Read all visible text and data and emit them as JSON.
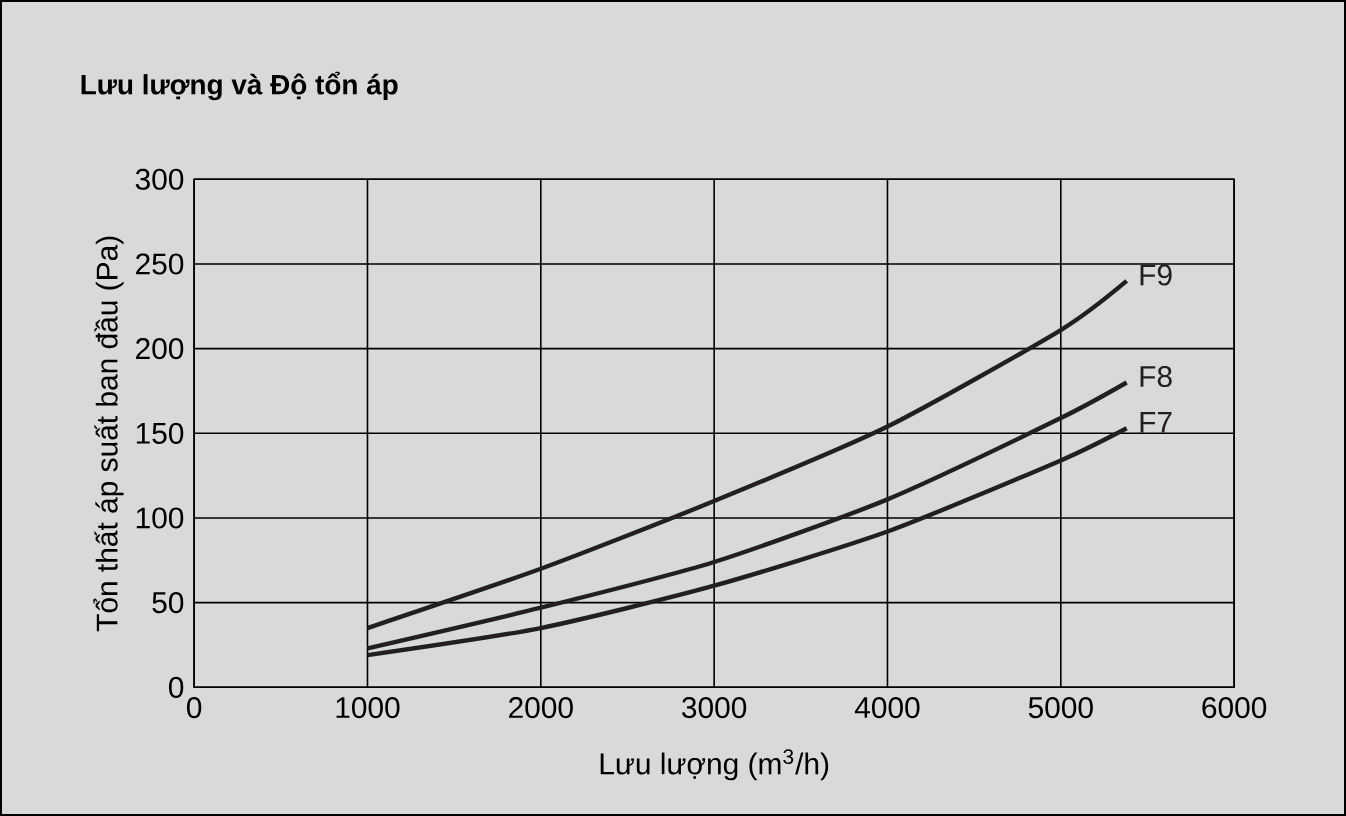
{
  "chart_data": {
    "type": "line",
    "title": "Lưu lượng và Độ tổn áp",
    "xlabel": "Lưu lượng (m$^{3}$/h)",
    "ylabel": "Tổn thất áp suất ban đầu (Pa)",
    "xlim": [
      0,
      6000
    ],
    "ylim": [
      0,
      300
    ],
    "xticks": [
      0,
      1000,
      2000,
      3000,
      4000,
      5000,
      6000
    ],
    "yticks": [
      0,
      50,
      100,
      150,
      200,
      250,
      300
    ],
    "grid": true,
    "legend": false,
    "marker": "none",
    "line_style": "solid",
    "series": [
      {
        "name": "F9",
        "color": "#231f20",
        "x": [
          1000,
          2000,
          3000,
          4000,
          5000,
          5380
        ],
        "values": [
          35,
          70,
          110,
          154,
          211,
          240
        ]
      },
      {
        "name": "F8",
        "color": "#231f20",
        "x": [
          1000,
          2000,
          3000,
          4000,
          5000,
          5380
        ],
        "values": [
          23,
          47,
          74,
          111,
          159,
          180
        ]
      },
      {
        "name": "F7",
        "color": "#231f20",
        "x": [
          1000,
          2000,
          3000,
          4000,
          5000,
          5380
        ],
        "values": [
          19,
          35,
          60,
          92,
          134,
          153
        ]
      }
    ]
  }
}
